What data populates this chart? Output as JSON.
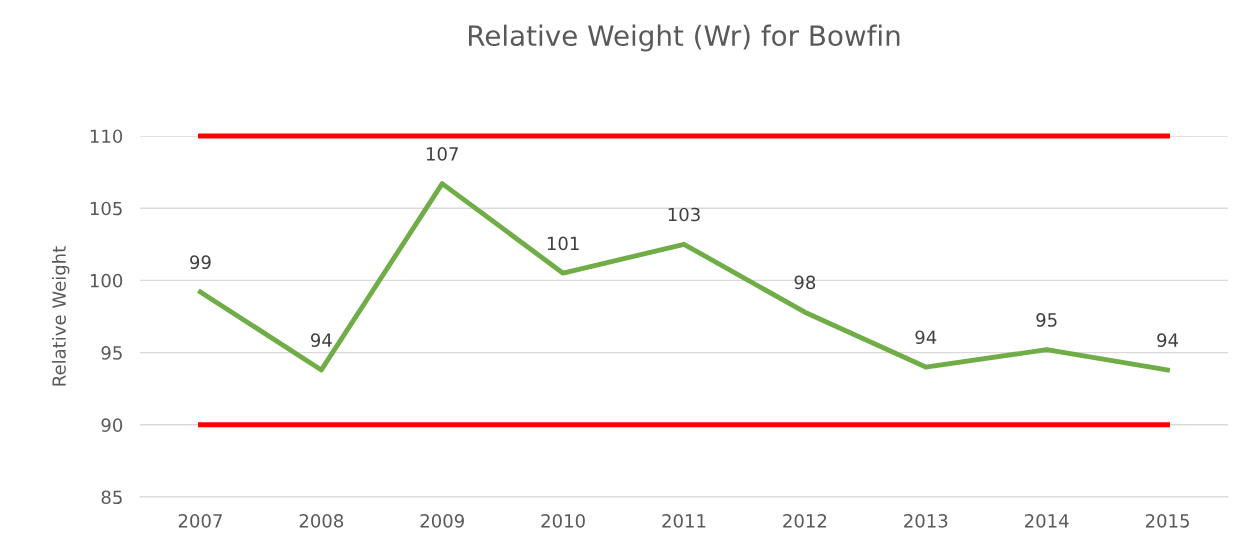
{
  "chart_data": {
    "type": "line",
    "title": "Relative Weight (Wr) for Bowfin",
    "ylabel": "Relative Weight",
    "categories": [
      "2007",
      "2008",
      "2009",
      "2010",
      "2011",
      "2012",
      "2013",
      "2014",
      "2015"
    ],
    "series": [
      {
        "color": "#70ad47",
        "values": [
          99.2,
          93.8,
          106.7,
          100.5,
          102.5,
          97.8,
          94.0,
          95.2,
          93.8
        ],
        "value_labels": [
          "99",
          "94",
          "107",
          "101",
          "103",
          "98",
          "94",
          "95",
          "94"
        ]
      },
      {
        "color": "#ff0000",
        "values": [
          110,
          110,
          110,
          110,
          110,
          110,
          110,
          110,
          110
        ]
      },
      {
        "color": "#ff0000",
        "values": [
          90,
          90,
          90,
          90,
          90,
          90,
          90,
          90,
          90
        ]
      }
    ],
    "ylim": [
      85,
      110
    ],
    "yticks": [
      85,
      90,
      95,
      100,
      105,
      110
    ],
    "grid": "y",
    "marker": "none",
    "line_style": "solid"
  }
}
